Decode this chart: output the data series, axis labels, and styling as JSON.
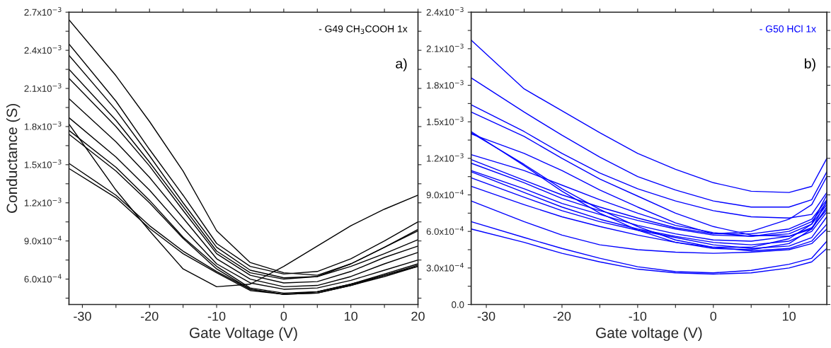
{
  "chart_data": [
    {
      "type": "line",
      "xlabel": "Gate Voltage (V)",
      "ylabel": "Conductance (S)",
      "annotations": [
        "- G49 CH$_{3}$COOH 1x",
        "a)"
      ],
      "x": [
        -32,
        -25,
        -20,
        -15,
        -10,
        -5,
        0,
        5,
        10,
        15,
        20
      ],
      "grid": false,
      "line_style": "solid",
      "xlim": [
        -32,
        20
      ],
      "ylim": [
        0.0004,
        0.0027
      ],
      "xticks": [
        -30,
        {
          "value": -25,
          "label": null
        },
        -20,
        {
          "value": -15,
          "label": null
        },
        -10,
        {
          "value": -5,
          "label": null
        },
        0,
        {
          "value": 5,
          "label": null
        },
        10,
        {
          "value": 15,
          "label": null
        },
        20
      ],
      "yticks": [
        {
          "value": 0.00045,
          "label": null
        },
        {
          "value": 0.0006,
          "label": "6.0x10$^{−4}$"
        },
        {
          "value": 0.00075,
          "label": null
        },
        {
          "value": 0.0009,
          "label": "9.0x10$^{−4}$"
        },
        {
          "value": 0.00105,
          "label": null
        },
        {
          "value": 0.0012,
          "label": "1.2x10$^{−3}$"
        },
        {
          "value": 0.00135,
          "label": null
        },
        {
          "value": 0.0015,
          "label": "1.5x10$^{−3}$"
        },
        {
          "value": 0.00165,
          "label": null
        },
        {
          "value": 0.0018,
          "label": "1.8x10$^{−3}$"
        },
        {
          "value": 0.00195,
          "label": null
        },
        {
          "value": 0.0021,
          "label": "2.1x10$^{−3}$"
        },
        {
          "value": 0.00225,
          "label": null
        },
        {
          "value": 0.0024,
          "label": "2.4x10$^{−3}$"
        },
        {
          "value": 0.00255,
          "label": null
        },
        {
          "value": 0.0027,
          "label": "2.7x10$^{−3}$"
        }
      ],
      "series": [
        {
          "color": "#000000",
          "values": [
            0.00264,
            0.0022,
            0.00184,
            0.00145,
            0.00098,
            0.00073,
            0.00065,
            0.00063,
            0.00072,
            0.00085,
            0.00099
          ]
        },
        {
          "color": "#000000",
          "values": [
            0.00245,
            0.002,
            0.00162,
            0.00126,
            0.00088,
            0.0007,
            0.00064,
            0.00066,
            0.00076,
            0.0009,
            0.00105
          ]
        },
        {
          "color": "#000000",
          "values": [
            0.00236,
            0.00193,
            0.00157,
            0.0012,
            0.00085,
            0.00067,
            0.00061,
            0.00062,
            0.00072,
            0.00085,
            0.00098
          ]
        },
        {
          "color": "#000000",
          "values": [
            0.00225,
            0.00185,
            0.00152,
            0.00117,
            0.00082,
            0.00065,
            0.0006,
            0.00062,
            0.0007,
            0.0008,
            0.00091
          ]
        },
        {
          "color": "#000000",
          "values": [
            0.00218,
            0.0018,
            0.00149,
            0.00114,
            0.0008,
            0.00063,
            0.00057,
            0.00058,
            0.00066,
            0.00077,
            0.00086
          ]
        },
        {
          "color": "#000000",
          "values": [
            0.00202,
            0.00168,
            0.0014,
            0.00108,
            0.00076,
            0.0006,
            0.00054,
            0.00055,
            0.00062,
            0.00072,
            0.00081
          ]
        },
        {
          "color": "#000000",
          "values": [
            0.00187,
            0.00156,
            0.0013,
            0.001,
            0.00072,
            0.00057,
            0.00052,
            0.00053,
            0.00059,
            0.00067,
            0.00075
          ]
        },
        {
          "color": "#000000",
          "values": [
            0.00182,
            0.0013,
            0.00098,
            0.00068,
            0.00054,
            0.00056,
            0.0007,
            0.00086,
            0.00102,
            0.00115,
            0.00126
          ]
        },
        {
          "color": "#000000",
          "values": [
            0.00177,
            0.00148,
            0.00122,
            0.00093,
            0.0007,
            0.00053,
            0.00049,
            0.0005,
            0.00056,
            0.00063,
            0.00071
          ]
        },
        {
          "color": "#000000",
          "values": [
            0.00174,
            0.00145,
            0.0012,
            0.00092,
            0.00068,
            0.00052,
            0.00048,
            0.00049,
            0.00055,
            0.00062,
            0.0007
          ]
        },
        {
          "color": "#000000",
          "values": [
            0.00151,
            0.00126,
            0.00102,
            0.00082,
            0.00066,
            0.00052,
            0.00048,
            0.00049,
            0.00055,
            0.00063,
            0.0007
          ]
        },
        {
          "color": "#000000",
          "values": [
            0.00147,
            0.00124,
            0.001,
            0.0008,
            0.00065,
            0.00051,
            0.00048,
            0.0005,
            0.00056,
            0.00064,
            0.00072
          ]
        }
      ]
    },
    {
      "type": "line",
      "xlabel": "Gate voltage (V)",
      "annotations": [
        "- G50 HCl 1x",
        "b)"
      ],
      "x": [
        -32,
        -25,
        -20,
        -15,
        -10,
        -5,
        0,
        5,
        10,
        13,
        15
      ],
      "xlim": [
        -32,
        15
      ],
      "ylim": [
        0,
        0.0024
      ],
      "xticks": [
        -30,
        {
          "value": -25,
          "label": null
        },
        -20,
        {
          "value": -15,
          "label": null
        },
        -10,
        {
          "value": -5,
          "label": null
        },
        0,
        {
          "value": 5,
          "label": null
        },
        10
      ],
      "yticks": [
        {
          "value": 0,
          "label": "0.0"
        },
        {
          "value": 0.00015,
          "label": null
        },
        {
          "value": 0.0003,
          "label": "3.0x10$^{−4}$"
        },
        {
          "value": 0.00045,
          "label": null
        },
        {
          "value": 0.0006,
          "label": "6.0x10$^{−4}$"
        },
        {
          "value": 0.00075,
          "label": null
        },
        {
          "value": 0.0009,
          "label": "9.0x10$^{−4}$"
        },
        {
          "value": 0.00105,
          "label": null
        },
        {
          "value": 0.0012,
          "label": "1.2x10$^{−3}$"
        },
        {
          "value": 0.00135,
          "label": null
        },
        {
          "value": 0.0015,
          "label": "1.5x10$^{−3}$"
        },
        {
          "value": 0.00165,
          "label": null
        },
        {
          "value": 0.0018,
          "label": "1.8x10$^{−3}$"
        },
        {
          "value": 0.00195,
          "label": null
        },
        {
          "value": 0.0021,
          "label": "2.1x10$^{−3}$"
        },
        {
          "value": 0.00225,
          "label": null
        },
        {
          "value": 0.0024,
          "label": "2.4x10$^{−3}$"
        }
      ],
      "grid": false,
      "line_style": "solid",
      "series": [
        {
          "color": "#0000ff",
          "values": [
            0.00217,
            0.00177,
            0.00159,
            0.00141,
            0.00124,
            0.00111,
            0.001,
            0.00093,
            0.00092,
            0.00097,
            0.0012
          ]
        },
        {
          "color": "#0000ff",
          "values": [
            0.00186,
            0.00158,
            0.00139,
            0.00121,
            0.00105,
            0.00094,
            0.00085,
            0.0008,
            0.0008,
            0.00086,
            0.00109
          ]
        },
        {
          "color": "#0000ff",
          "values": [
            0.00164,
            0.00142,
            0.00124,
            0.00108,
            0.00095,
            0.00085,
            0.00077,
            0.00072,
            0.00071,
            0.00074,
            0.00092
          ]
        },
        {
          "color": "#0000ff",
          "values": [
            0.00158,
            0.00138,
            0.0012,
            0.00103,
            0.00089,
            0.00075,
            0.00064,
            0.00057,
            0.00056,
            0.00062,
            0.0008
          ]
        },
        {
          "color": "#0000ff",
          "values": [
            0.00142,
            0.00114,
            0.00093,
            0.00075,
            0.00061,
            0.00051,
            0.00046,
            0.00045,
            0.0005,
            0.00062,
            0.00085
          ]
        },
        {
          "color": "#0000ff",
          "values": [
            0.00141,
            0.00115,
            0.00095,
            0.00078,
            0.00064,
            0.00053,
            0.00047,
            0.00047,
            0.00054,
            0.00066,
            0.0009
          ]
        },
        {
          "color": "#0000ff",
          "values": [
            0.0014,
            0.00124,
            0.0011,
            0.00094,
            0.0008,
            0.00067,
            0.00058,
            0.0006,
            0.0007,
            0.00082,
            0.00105
          ]
        },
        {
          "color": "#0000ff",
          "values": [
            0.00123,
            0.0011,
            0.00098,
            0.00086,
            0.00075,
            0.00065,
            0.00059,
            0.00056,
            0.00058,
            0.00066,
            0.00082
          ]
        },
        {
          "color": "#0000ff",
          "values": [
            0.00119,
            0.00102,
            0.0009,
            0.0008,
            0.00071,
            0.00063,
            0.00058,
            0.00058,
            0.00062,
            0.0007,
            0.00086
          ]
        },
        {
          "color": "#0000ff",
          "values": [
            0.00116,
            0.001,
            0.00087,
            0.00077,
            0.00069,
            0.00062,
            0.00057,
            0.00056,
            0.0006,
            0.00068,
            0.00084
          ]
        },
        {
          "color": "#0000ff",
          "values": [
            0.0011,
            0.00095,
            0.00083,
            0.00074,
            0.00065,
            0.00058,
            0.00053,
            0.00052,
            0.00056,
            0.00063,
            0.00078
          ]
        },
        {
          "color": "#0000ff",
          "values": [
            0.00109,
            0.00092,
            0.0008,
            0.0007,
            0.00062,
            0.00056,
            0.00051,
            0.00049,
            0.00052,
            0.0006,
            0.00076
          ]
        },
        {
          "color": "#0000ff",
          "values": [
            0.00104,
            0.00088,
            0.00077,
            0.00068,
            0.00061,
            0.00055,
            0.00049,
            0.00046,
            0.00048,
            0.00055,
            0.00072
          ]
        },
        {
          "color": "#0000ff",
          "values": [
            0.00097,
            0.00082,
            0.00072,
            0.00064,
            0.00057,
            0.00051,
            0.00047,
            0.00044,
            0.00046,
            0.00052,
            0.00066
          ]
        },
        {
          "color": "#0000ff",
          "values": [
            0.00085,
            0.00068,
            0.00057,
            0.00049,
            0.00045,
            0.00043,
            0.00042,
            0.00043,
            0.00045,
            0.0005,
            0.00062
          ]
        },
        {
          "color": "#0000ff",
          "values": [
            0.00068,
            0.00055,
            0.00046,
            0.00038,
            0.00031,
            0.00027,
            0.00026,
            0.00028,
            0.00033,
            0.00038,
            0.00052
          ]
        },
        {
          "color": "#0000ff",
          "values": [
            0.00062,
            0.00051,
            0.00042,
            0.00035,
            0.00029,
            0.00026,
            0.00025,
            0.00026,
            0.0003,
            0.00035,
            0.00046
          ]
        }
      ]
    }
  ]
}
